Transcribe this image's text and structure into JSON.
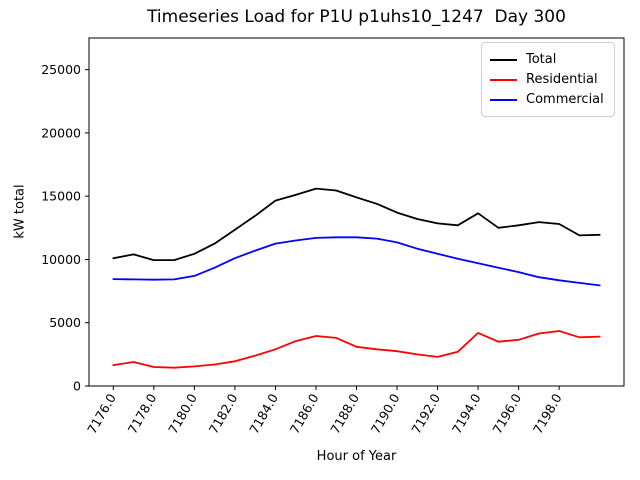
{
  "title": "Timeseries Load for P1U p1uhs10_1247  Day 300",
  "axes": {
    "xlabel": "Hour of Year",
    "ylabel": "kW total"
  },
  "chart_data": {
    "type": "line",
    "title": "Timeseries Load for P1U p1uhs10_1247  Day 300",
    "xlabel": "Hour of Year",
    "ylabel": "kW total",
    "x": [
      7176,
      7177,
      7178,
      7179,
      7180,
      7181,
      7182,
      7183,
      7184,
      7185,
      7186,
      7187,
      7188,
      7189,
      7190,
      7191,
      7192,
      7193,
      7194,
      7195,
      7196,
      7197,
      7198,
      7199,
      7200
    ],
    "series": [
      {
        "name": "Total",
        "color": "#000000",
        "values": [
          10100,
          10400,
          9950,
          9950,
          10450,
          11250,
          12350,
          13450,
          14650,
          15100,
          15600,
          15450,
          14900,
          14400,
          13700,
          13200,
          12850,
          12700,
          13650,
          12500,
          12700,
          12950,
          12800,
          11900,
          11950
        ]
      },
      {
        "name": "Residential",
        "color": "#ff0000",
        "values": [
          1650,
          1900,
          1500,
          1450,
          1550,
          1700,
          1950,
          2400,
          2900,
          3550,
          3950,
          3800,
          3100,
          2900,
          2750,
          2500,
          2300,
          2700,
          4200,
          3500,
          3650,
          4150,
          4350,
          3850,
          3900
        ]
      },
      {
        "name": "Commercial",
        "color": "#0000ff",
        "values": [
          8450,
          8420,
          8400,
          8420,
          8700,
          9350,
          10100,
          10700,
          11250,
          11500,
          11700,
          11750,
          11750,
          11650,
          11350,
          10850,
          10450,
          10050,
          9700,
          9350,
          9000,
          8600,
          8350,
          8150,
          7950
        ]
      }
    ],
    "xtick_values": [
      7176,
      7178,
      7180,
      7182,
      7184,
      7186,
      7188,
      7190,
      7192,
      7194,
      7196,
      7198
    ],
    "xtick_labels": [
      "7176.0",
      "7178.0",
      "7180.0",
      "7182.0",
      "7184.0",
      "7186.0",
      "7188.0",
      "7190.0",
      "7192.0",
      "7194.0",
      "7196.0",
      "7198.0"
    ],
    "ytick_values": [
      0,
      5000,
      10000,
      15000,
      20000,
      25000
    ],
    "ytick_labels": [
      "0",
      "5000",
      "10000",
      "15000",
      "20000",
      "25000"
    ],
    "xlim": [
      7174.8,
      7201.2
    ],
    "ylim": [
      0,
      27500
    ],
    "grid": false,
    "legend_position": "upper right"
  }
}
